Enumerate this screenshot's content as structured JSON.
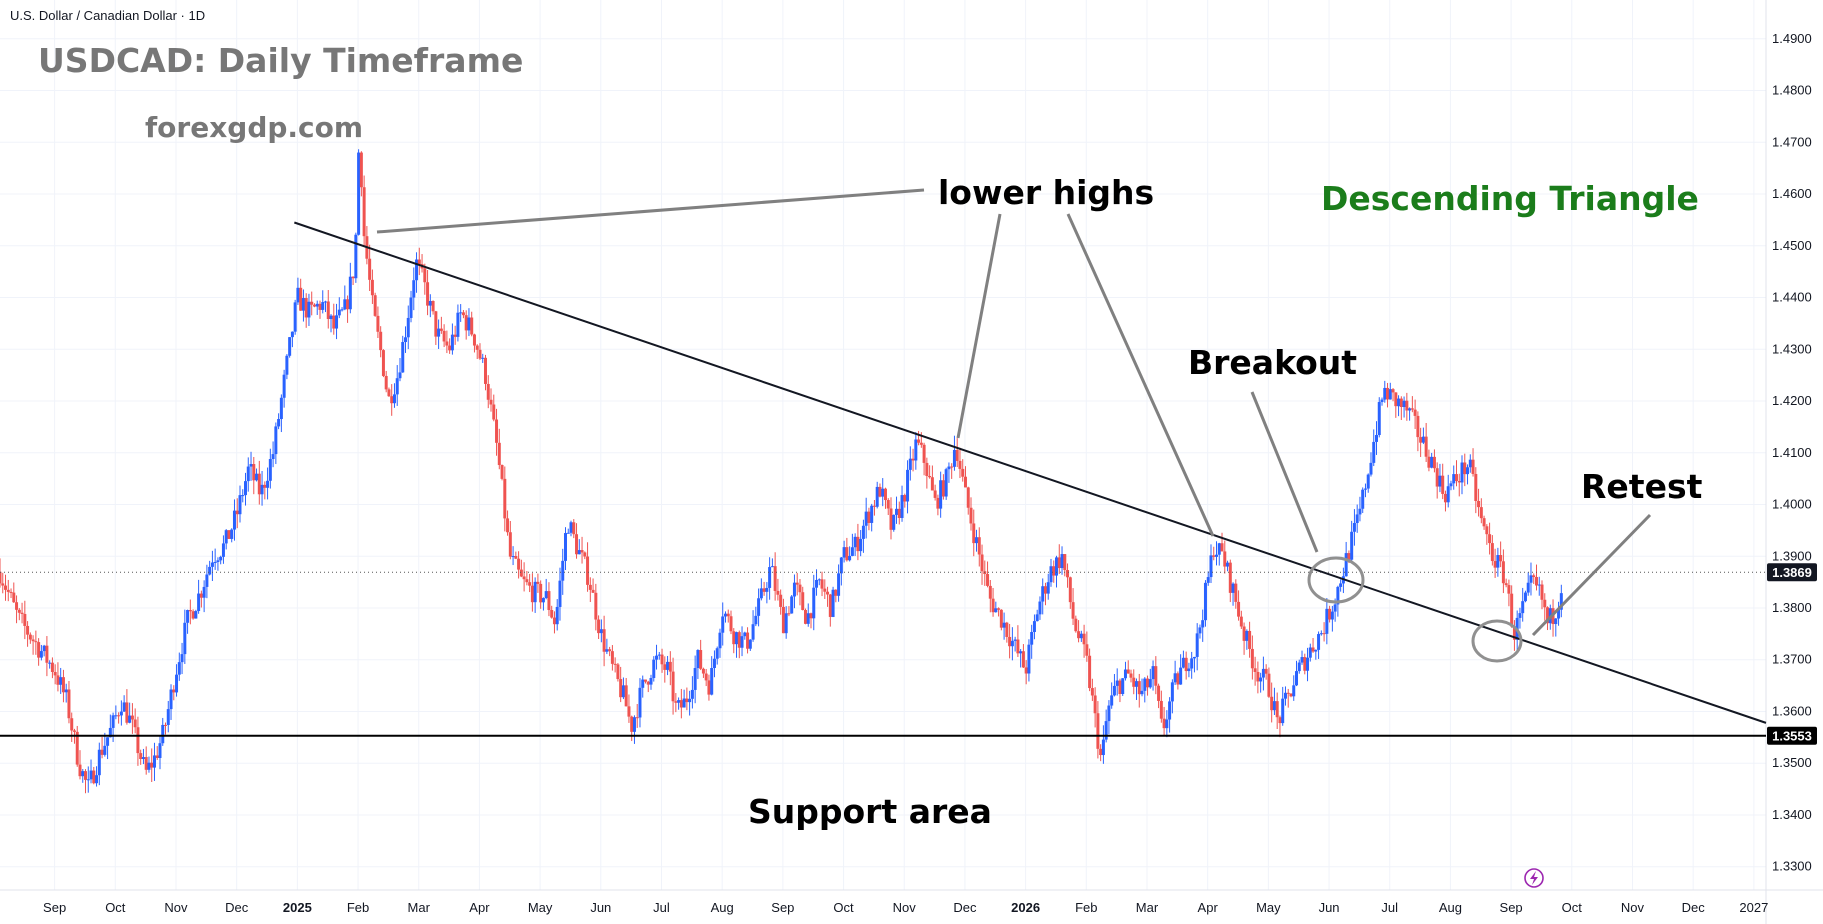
{
  "symbol_label": "U.S. Dollar / Canadian Dollar · 1D",
  "chart_title": "USDCAD: Daily Timeframe",
  "watermark_site": "forexgdp.com",
  "colors": {
    "up": "#2962ff",
    "down": "#ef5350",
    "title_gray": "#777777",
    "pattern_green": "#1b7d1b",
    "support_line": "#000000",
    "current_price_tag": "#131722",
    "lightning_badge": "#9c27b0"
  },
  "chart_data": {
    "type": "candlestick",
    "price_axis": {
      "ticks": [
        "1.4900",
        "1.4800",
        "1.4700",
        "1.4600",
        "1.4500",
        "1.4400",
        "1.4300",
        "1.4200",
        "1.4100",
        "1.4000",
        "1.3900",
        "1.3800",
        "1.3700",
        "1.3600",
        "1.3500",
        "1.3400",
        "1.3300"
      ],
      "range": [
        1.3255,
        1.4975
      ]
    },
    "time_axis": {
      "ticks": [
        "Sep",
        "Oct",
        "Nov",
        "Dec",
        "2025",
        "Feb",
        "Mar",
        "Apr",
        "May",
        "Jun",
        "Jul",
        "Aug",
        "Sep",
        "Oct",
        "Nov",
        "Dec",
        "2026",
        "Feb",
        "Mar",
        "Apr",
        "May",
        "Jun",
        "Jul",
        "Aug",
        "Sep",
        "Oct",
        "Nov",
        "Dec",
        "2027"
      ],
      "tick_months_index": [
        0,
        1,
        2,
        3,
        4,
        5,
        6,
        7,
        8,
        9,
        10,
        11,
        12,
        13,
        14,
        15,
        16,
        17,
        18,
        19,
        20,
        21,
        22,
        23,
        24,
        25,
        26,
        27,
        28
      ],
      "range_months_index": [
        -0.9,
        28.2
      ]
    },
    "price_path": [
      [
        -0.9,
        1.387
      ],
      [
        -0.6,
        1.378
      ],
      [
        -0.3,
        1.373
      ],
      [
        0,
        1.368
      ],
      [
        0.2,
        1.362
      ],
      [
        0.4,
        1.35
      ],
      [
        0.55,
        1.345
      ],
      [
        0.75,
        1.352
      ],
      [
        0.95,
        1.357
      ],
      [
        1.1,
        1.362
      ],
      [
        1.25,
        1.358
      ],
      [
        1.4,
        1.352
      ],
      [
        1.5,
        1.348
      ],
      [
        1.65,
        1.351
      ],
      [
        1.8,
        1.356
      ],
      [
        2.0,
        1.368
      ],
      [
        2.2,
        1.378
      ],
      [
        2.4,
        1.383
      ],
      [
        2.6,
        1.39
      ],
      [
        2.8,
        1.392
      ],
      [
        3.0,
        1.398
      ],
      [
        3.2,
        1.407
      ],
      [
        3.4,
        1.402
      ],
      [
        3.6,
        1.41
      ],
      [
        3.8,
        1.425
      ],
      [
        4.0,
        1.44
      ],
      [
        4.2,
        1.437
      ],
      [
        4.4,
        1.439
      ],
      [
        4.6,
        1.434
      ],
      [
        4.8,
        1.438
      ],
      [
        4.95,
        1.447
      ],
      [
        5.02,
        1.472
      ],
      [
        5.1,
        1.452
      ],
      [
        5.25,
        1.437
      ],
      [
        5.4,
        1.428
      ],
      [
        5.5,
        1.42
      ],
      [
        5.65,
        1.425
      ],
      [
        5.8,
        1.435
      ],
      [
        5.95,
        1.447
      ],
      [
        6.1,
        1.442
      ],
      [
        6.3,
        1.433
      ],
      [
        6.5,
        1.43
      ],
      [
        6.7,
        1.437
      ],
      [
        6.9,
        1.433
      ],
      [
        7.1,
        1.425
      ],
      [
        7.3,
        1.41
      ],
      [
        7.5,
        1.39
      ],
      [
        7.7,
        1.385
      ],
      [
        7.9,
        1.383
      ],
      [
        8.1,
        1.382
      ],
      [
        8.25,
        1.377
      ],
      [
        8.45,
        1.397
      ],
      [
        8.6,
        1.392
      ],
      [
        8.8,
        1.386
      ],
      [
        9.0,
        1.375
      ],
      [
        9.2,
        1.368
      ],
      [
        9.4,
        1.362
      ],
      [
        9.5,
        1.357
      ],
      [
        9.7,
        1.365
      ],
      [
        9.9,
        1.37
      ],
      [
        10.1,
        1.368
      ],
      [
        10.25,
        1.36
      ],
      [
        10.4,
        1.362
      ],
      [
        10.6,
        1.37
      ],
      [
        10.8,
        1.365
      ],
      [
        11.0,
        1.38
      ],
      [
        11.2,
        1.375
      ],
      [
        11.4,
        1.373
      ],
      [
        11.6,
        1.38
      ],
      [
        11.8,
        1.388
      ],
      [
        12.0,
        1.377
      ],
      [
        12.2,
        1.384
      ],
      [
        12.4,
        1.378
      ],
      [
        12.6,
        1.385
      ],
      [
        12.8,
        1.38
      ],
      [
        13.0,
        1.39
      ],
      [
        13.2,
        1.392
      ],
      [
        13.4,
        1.398
      ],
      [
        13.6,
        1.403
      ],
      [
        13.8,
        1.395
      ],
      [
        14.0,
        1.402
      ],
      [
        14.2,
        1.412
      ],
      [
        14.35,
        1.408
      ],
      [
        14.5,
        1.4
      ],
      [
        14.7,
        1.405
      ],
      [
        14.85,
        1.412
      ],
      [
        15.0,
        1.402
      ],
      [
        15.2,
        1.392
      ],
      [
        15.4,
        1.382
      ],
      [
        15.6,
        1.378
      ],
      [
        15.8,
        1.373
      ],
      [
        16.0,
        1.368
      ],
      [
        16.2,
        1.38
      ],
      [
        16.4,
        1.387
      ],
      [
        16.6,
        1.39
      ],
      [
        16.8,
        1.377
      ],
      [
        17.0,
        1.37
      ],
      [
        17.1,
        1.362
      ],
      [
        17.25,
        1.35
      ],
      [
        17.35,
        1.36
      ],
      [
        17.5,
        1.365
      ],
      [
        17.7,
        1.367
      ],
      [
        17.9,
        1.363
      ],
      [
        18.1,
        1.367
      ],
      [
        18.25,
        1.356
      ],
      [
        18.45,
        1.365
      ],
      [
        18.65,
        1.37
      ],
      [
        18.8,
        1.372
      ],
      [
        19.0,
        1.385
      ],
      [
        19.1,
        1.392
      ],
      [
        19.25,
        1.39
      ],
      [
        19.45,
        1.382
      ],
      [
        19.6,
        1.375
      ],
      [
        19.8,
        1.368
      ],
      [
        20.0,
        1.365
      ],
      [
        20.15,
        1.358
      ],
      [
        20.3,
        1.362
      ],
      [
        20.5,
        1.368
      ],
      [
        20.7,
        1.372
      ],
      [
        20.9,
        1.376
      ],
      [
        21.1,
        1.382
      ],
      [
        21.3,
        1.39
      ],
      [
        21.5,
        1.398
      ],
      [
        21.7,
        1.41
      ],
      [
        21.9,
        1.422
      ],
      [
        22.1,
        1.42
      ],
      [
        22.3,
        1.418
      ],
      [
        22.5,
        1.413
      ],
      [
        22.7,
        1.408
      ],
      [
        22.9,
        1.402
      ],
      [
        23.1,
        1.405
      ],
      [
        23.3,
        1.408
      ],
      [
        23.5,
        1.397
      ],
      [
        23.7,
        1.39
      ],
      [
        23.9,
        1.386
      ],
      [
        24.05,
        1.375
      ],
      [
        24.2,
        1.38
      ],
      [
        24.35,
        1.385
      ],
      [
        24.5,
        1.382
      ],
      [
        24.6,
        1.377
      ],
      [
        24.75,
        1.38
      ],
      [
        24.85,
        1.386
      ]
    ],
    "price_lines": [
      {
        "label": "1.3869",
        "value": 1.3869,
        "style": "dotted"
      },
      {
        "label": "1.3553",
        "value": 1.3553,
        "style": "solid"
      }
    ],
    "trendline": {
      "from": [
        3.95,
        1.4545
      ],
      "to": [
        28.2,
        1.3578
      ]
    },
    "annotations": [
      {
        "text": "lower highs"
      },
      {
        "text": "Descending Triangle"
      },
      {
        "text": "Breakout"
      },
      {
        "text": "Retest"
      },
      {
        "text": "Support area"
      }
    ]
  }
}
